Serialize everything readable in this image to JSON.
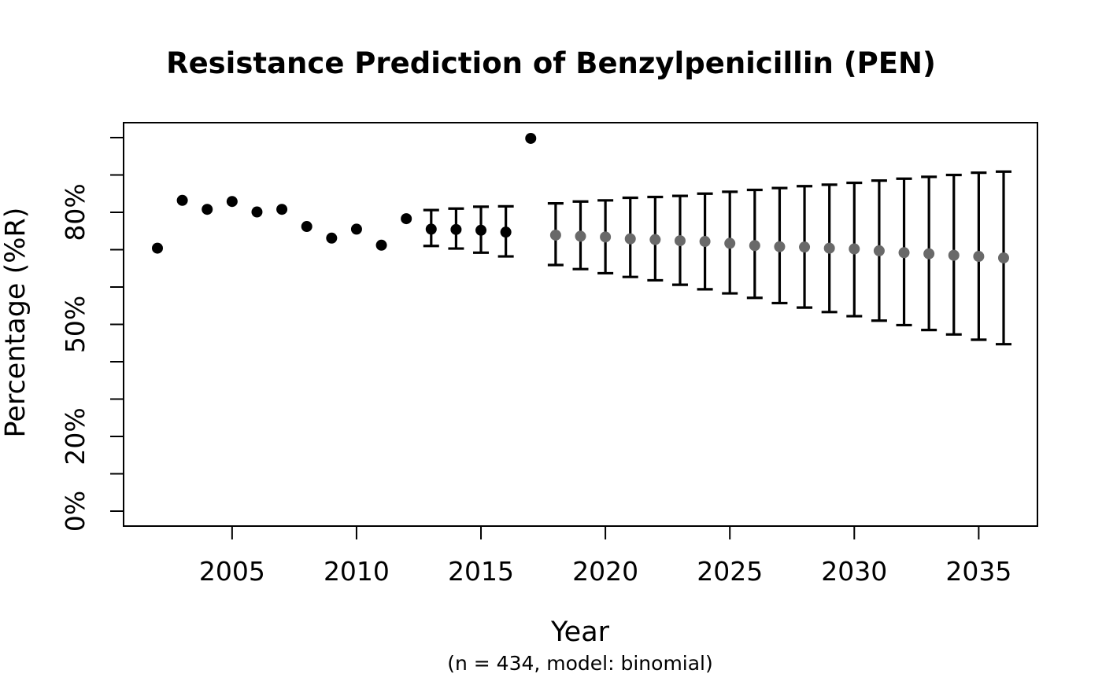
{
  "chart_data": {
    "type": "scatter",
    "title": "Resistance Prediction of Benzylpenicillin (PEN)",
    "xlabel": "Year",
    "ylabel": "Percentage (%R)",
    "subtitle": "(n = 434, model: binomial)",
    "grid": false,
    "legend": "none",
    "x_axis": {
      "range": [
        2000.64,
        2037.36
      ],
      "ticks": [
        2005,
        2010,
        2015,
        2020,
        2025,
        2030,
        2035
      ]
    },
    "y_axis": {
      "range": [
        -4,
        104
      ],
      "unit": "%",
      "tick_values": [
        0,
        10,
        20,
        30,
        40,
        50,
        60,
        70,
        80,
        90,
        100
      ],
      "labeled_ticks": [
        {
          "value": 0,
          "label": "0%"
        },
        {
          "value": 20,
          "label": "20%"
        },
        {
          "value": 50,
          "label": "50%"
        },
        {
          "value": 80,
          "label": "80%"
        }
      ]
    },
    "colors": {
      "observed_point": "#000000",
      "predicted_point": "#696969",
      "error_bar": "#000000",
      "background": "#ffffff",
      "text": "#000000"
    },
    "series": [
      {
        "name": "observed",
        "style": "points",
        "color": "#000000",
        "points": [
          {
            "x": 2002,
            "y": 70.4
          },
          {
            "x": 2003,
            "y": 83.2
          },
          {
            "x": 2004,
            "y": 80.8
          },
          {
            "x": 2005,
            "y": 82.9
          },
          {
            "x": 2006,
            "y": 80.1
          },
          {
            "x": 2007,
            "y": 80.8
          },
          {
            "x": 2008,
            "y": 76.2
          },
          {
            "x": 2009,
            "y": 73.1
          },
          {
            "x": 2010,
            "y": 75.5
          },
          {
            "x": 2011,
            "y": 71.2
          },
          {
            "x": 2012,
            "y": 78.3
          },
          {
            "x": 2013,
            "y": 75.5
          },
          {
            "x": 2014,
            "y": 75.4
          },
          {
            "x": 2015,
            "y": 75.2
          },
          {
            "x": 2016,
            "y": 74.7
          },
          {
            "x": 2017,
            "y": 99.8
          }
        ]
      },
      {
        "name": "observed-fit-ci",
        "style": "errorbars",
        "color": "#000000",
        "points": [
          {
            "x": 2013,
            "low": 71.0,
            "high": 80.6
          },
          {
            "x": 2014,
            "low": 70.3,
            "high": 81.0
          },
          {
            "x": 2015,
            "low": 69.2,
            "high": 81.5
          },
          {
            "x": 2016,
            "low": 68.2,
            "high": 81.6
          }
        ]
      },
      {
        "name": "predicted",
        "style": "points-with-errorbars",
        "color": "#696969",
        "errorbar_color": "#000000",
        "points": [
          {
            "x": 2018,
            "y": 73.9,
            "low": 65.9,
            "high": 82.4
          },
          {
            "x": 2019,
            "y": 73.6,
            "low": 64.8,
            "high": 82.9
          },
          {
            "x": 2020,
            "y": 73.4,
            "low": 63.7,
            "high": 83.2
          },
          {
            "x": 2021,
            "y": 72.9,
            "low": 62.7,
            "high": 83.9
          },
          {
            "x": 2022,
            "y": 72.7,
            "low": 61.8,
            "high": 84.1
          },
          {
            "x": 2023,
            "y": 72.4,
            "low": 60.6,
            "high": 84.4
          },
          {
            "x": 2024,
            "y": 72.2,
            "low": 59.4,
            "high": 85.0
          },
          {
            "x": 2025,
            "y": 71.7,
            "low": 58.3,
            "high": 85.5
          },
          {
            "x": 2026,
            "y": 71.1,
            "low": 57.1,
            "high": 86.0
          },
          {
            "x": 2027,
            "y": 70.8,
            "low": 55.7,
            "high": 86.5
          },
          {
            "x": 2028,
            "y": 70.7,
            "low": 54.5,
            "high": 87.0
          },
          {
            "x": 2029,
            "y": 70.4,
            "low": 53.3,
            "high": 87.4
          },
          {
            "x": 2030,
            "y": 70.2,
            "low": 52.2,
            "high": 87.9
          },
          {
            "x": 2031,
            "y": 69.7,
            "low": 51.0,
            "high": 88.5
          },
          {
            "x": 2032,
            "y": 69.2,
            "low": 49.8,
            "high": 89.0
          },
          {
            "x": 2033,
            "y": 68.9,
            "low": 48.5,
            "high": 89.5
          },
          {
            "x": 2034,
            "y": 68.5,
            "low": 47.3,
            "high": 90.0
          },
          {
            "x": 2035,
            "y": 68.2,
            "low": 45.9,
            "high": 90.6
          },
          {
            "x": 2036,
            "y": 67.8,
            "low": 44.7,
            "high": 90.9
          }
        ]
      }
    ]
  }
}
